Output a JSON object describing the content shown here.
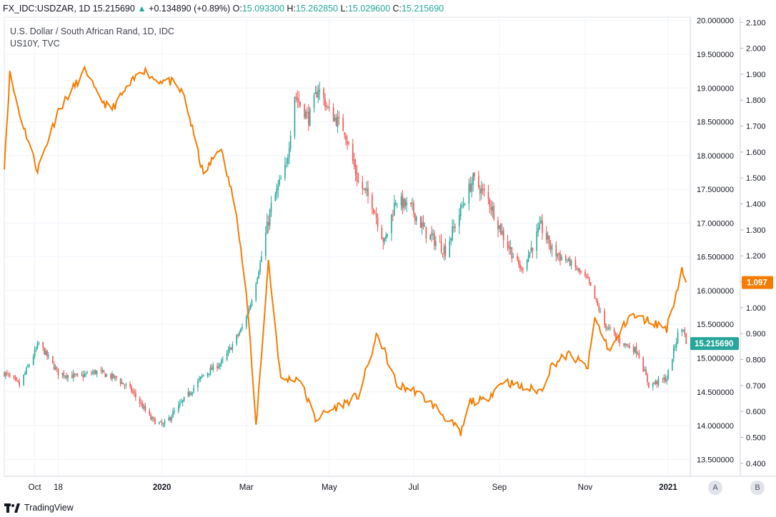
{
  "header": {
    "symbol": "FX_IDC:USDZAR, 1D",
    "last": "15.215690",
    "change": "+0.134890 (+0.89%)",
    "o_label": "O:",
    "o_val": "15.093300",
    "h_label": "H:",
    "h_val": "15.262850",
    "l_label": "L:",
    "l_val": "15.029600",
    "c_label": "C:",
    "c_val": "15.215690"
  },
  "legend": {
    "line1": "U.S. Dollar / South African Rand, 1D, IDC",
    "line2": "US10Y, TVC"
  },
  "footer": {
    "brand": "TradingView"
  },
  "scale_buttons": {
    "a": "A",
    "b": "B"
  },
  "colors": {
    "up": "#26a69a",
    "down": "#ef5350",
    "yield_line": "#f57c00",
    "grid": "#f0f3fa"
  },
  "chart_data": {
    "type": "candlestick+line",
    "title": "U.S. Dollar / South African Rand, 1D, IDC",
    "xlabel": "",
    "ylabel": "",
    "x_ticks": [
      "Oct",
      "18",
      "2020",
      "Mar",
      "May",
      "Jul",
      "Sep",
      "Nov",
      "2021"
    ],
    "left_axis": {
      "label": "US10Y",
      "ylim": [
        0.35,
        2.12
      ],
      "ticks": [
        "2.100",
        "2.000",
        "1.900",
        "1.800",
        "1.700",
        "1.600",
        "1.500",
        "1.400",
        "1.300",
        "1.200",
        "1.100",
        "1.000",
        "0.900",
        "0.800",
        "0.700",
        "0.600",
        "0.500",
        "0.400"
      ]
    },
    "right_axis": {
      "label": "USDZAR",
      "ylim": [
        13.25,
        20.05
      ],
      "ticks": [
        "20.000000",
        "19.500000",
        "19.000000",
        "18.500000",
        "18.000000",
        "17.500000",
        "17.000000",
        "16.500000",
        "16.000000",
        "15.500000",
        "15.000000",
        "14.500000",
        "14.000000",
        "13.500000"
      ]
    },
    "series": [
      {
        "name": "USDZAR",
        "kind": "candles",
        "close_keypoints": [
          [
            "2019-09-09",
            14.78
          ],
          [
            "2019-09-20",
            14.6
          ],
          [
            "2019-10-04",
            15.22
          ],
          [
            "2019-10-18",
            14.78
          ],
          [
            "2019-11-01",
            14.72
          ],
          [
            "2019-11-15",
            14.8
          ],
          [
            "2019-11-29",
            14.7
          ],
          [
            "2019-12-10",
            14.52
          ],
          [
            "2019-12-24",
            14.1
          ],
          [
            "2020-01-02",
            14.0
          ],
          [
            "2020-01-15",
            14.33
          ],
          [
            "2020-01-31",
            14.75
          ],
          [
            "2020-02-14",
            14.95
          ],
          [
            "2020-02-28",
            15.45
          ],
          [
            "2020-03-05",
            15.8
          ],
          [
            "2020-03-12",
            16.4
          ],
          [
            "2020-03-20",
            17.25
          ],
          [
            "2020-03-31",
            17.85
          ],
          [
            "2020-04-06",
            18.9
          ],
          [
            "2020-04-16",
            18.55
          ],
          [
            "2020-04-23",
            19.0
          ],
          [
            "2020-05-01",
            18.65
          ],
          [
            "2020-05-12",
            18.38
          ],
          [
            "2020-05-22",
            17.6
          ],
          [
            "2020-06-01",
            17.3
          ],
          [
            "2020-06-10",
            16.7
          ],
          [
            "2020-06-18",
            17.35
          ],
          [
            "2020-06-30",
            17.2
          ],
          [
            "2020-07-10",
            16.85
          ],
          [
            "2020-07-24",
            16.6
          ],
          [
            "2020-08-06",
            17.3
          ],
          [
            "2020-08-13",
            17.65
          ],
          [
            "2020-08-24",
            17.35
          ],
          [
            "2020-09-04",
            16.8
          ],
          [
            "2020-09-17",
            16.3
          ],
          [
            "2020-10-01",
            16.95
          ],
          [
            "2020-10-09",
            16.6
          ],
          [
            "2020-10-23",
            16.4
          ],
          [
            "2020-11-04",
            16.15
          ],
          [
            "2020-11-16",
            15.5
          ],
          [
            "2020-11-27",
            15.25
          ],
          [
            "2020-12-10",
            15.1
          ],
          [
            "2020-12-18",
            14.6
          ],
          [
            "2020-12-31",
            14.7
          ],
          [
            "2021-01-08",
            15.35
          ],
          [
            "2021-01-12",
            15.45
          ],
          [
            "2021-01-14",
            15.22
          ]
        ],
        "last": 15.21569
      },
      {
        "name": "US10Y",
        "kind": "line",
        "keypoints": [
          [
            "2019-09-09",
            1.55
          ],
          [
            "2019-09-13",
            1.9
          ],
          [
            "2019-09-20",
            1.75
          ],
          [
            "2019-10-03",
            1.53
          ],
          [
            "2019-10-18",
            1.76
          ],
          [
            "2019-11-07",
            1.92
          ],
          [
            "2019-11-14",
            1.83
          ],
          [
            "2019-11-25",
            1.76
          ],
          [
            "2019-12-06",
            1.84
          ],
          [
            "2019-12-18",
            1.92
          ],
          [
            "2019-12-27",
            1.88
          ],
          [
            "2020-01-08",
            1.87
          ],
          [
            "2020-01-17",
            1.82
          ],
          [
            "2020-01-31",
            1.51
          ],
          [
            "2020-02-12",
            1.62
          ],
          [
            "2020-02-24",
            1.37
          ],
          [
            "2020-03-03",
            1.0
          ],
          [
            "2020-03-09",
            0.54
          ],
          [
            "2020-03-18",
            1.18
          ],
          [
            "2020-03-27",
            0.72
          ],
          [
            "2020-04-09",
            0.73
          ],
          [
            "2020-04-21",
            0.57
          ],
          [
            "2020-05-07",
            0.62
          ],
          [
            "2020-05-22",
            0.66
          ],
          [
            "2020-06-05",
            0.9
          ],
          [
            "2020-06-19",
            0.7
          ],
          [
            "2020-07-02",
            0.68
          ],
          [
            "2020-07-16",
            0.62
          ],
          [
            "2020-07-31",
            0.54
          ],
          [
            "2020-08-04",
            0.51
          ],
          [
            "2020-08-11",
            0.64
          ],
          [
            "2020-08-21",
            0.64
          ],
          [
            "2020-09-04",
            0.72
          ],
          [
            "2020-09-18",
            0.69
          ],
          [
            "2020-10-01",
            0.68
          ],
          [
            "2020-10-09",
            0.78
          ],
          [
            "2020-10-21",
            0.82
          ],
          [
            "2020-11-04",
            0.77
          ],
          [
            "2020-11-09",
            0.96
          ],
          [
            "2020-11-20",
            0.83
          ],
          [
            "2020-12-04",
            0.97
          ],
          [
            "2020-12-18",
            0.95
          ],
          [
            "2020-12-31",
            0.92
          ],
          [
            "2021-01-06",
            1.04
          ],
          [
            "2021-01-11",
            1.15
          ],
          [
            "2021-01-14",
            1.097
          ]
        ],
        "last": 1.097
      }
    ],
    "last_value_labels": {
      "usdzar": "15.215690",
      "us10y": "1.097"
    },
    "grid": true
  }
}
